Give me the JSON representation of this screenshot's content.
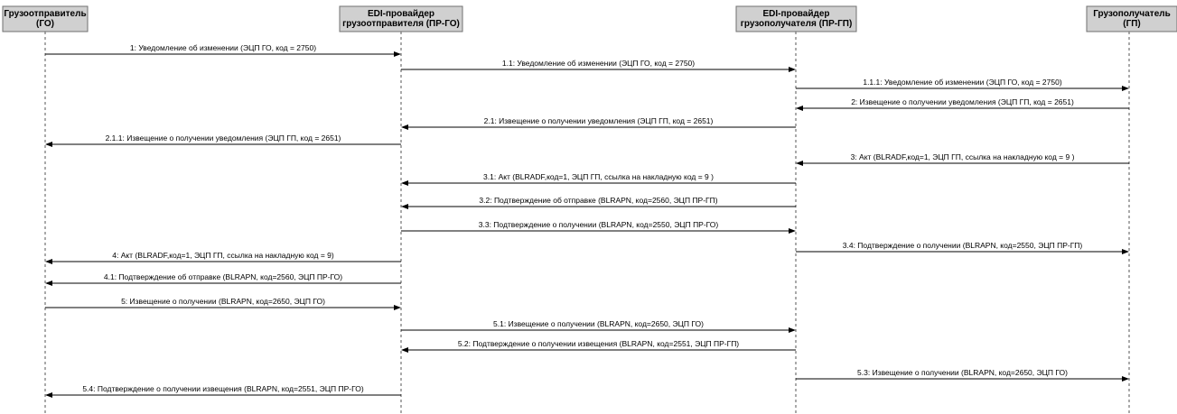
{
  "actors": [
    {
      "id": "go",
      "lines": [
        "Грузоотправитель",
        "(ГО)"
      ]
    },
    {
      "id": "prgo",
      "lines": [
        "EDI-провайдер",
        "грузоотправителя (ПР-ГО)"
      ]
    },
    {
      "id": "prgp",
      "lines": [
        "EDI-провайдер",
        "грузополучателя (ПР-ГП)"
      ]
    },
    {
      "id": "gp",
      "lines": [
        "Грузополучатель",
        "(ГП)"
      ]
    }
  ],
  "messages": [
    {
      "from": "go",
      "to": "prgo",
      "label": "1: Уведомление об изменении (ЭЦП ГО, код = 2750)"
    },
    {
      "from": "prgo",
      "to": "prgp",
      "label": "1.1: Уведомление об изменении (ЭЦП ГО, код = 2750)"
    },
    {
      "from": "prgp",
      "to": "gp",
      "label": "1.1.1: Уведомление об изменении (ЭЦП ГО, код = 2750)"
    },
    {
      "from": "gp",
      "to": "prgp",
      "label": "2: Извещение о получении уведомления (ЭЦП ГП, код = 2651)"
    },
    {
      "from": "prgp",
      "to": "prgo",
      "label": "2.1: Извещение о получении уведомления (ЭЦП ГП, код = 2651)"
    },
    {
      "from": "prgo",
      "to": "go",
      "label": "2.1.1: Извещение о получении уведомления (ЭЦП ГП, код = 2651)"
    },
    {
      "from": "gp",
      "to": "prgp",
      "label": "3: Акт (BLRADF,код=1, ЭЦП ГП, ссылка на накладную код =  9 )"
    },
    {
      "from": "prgp",
      "to": "prgo",
      "label": "3.1: Акт (BLRADF,код=1, ЭЦП ГП, ссылка на накладную код =  9 )"
    },
    {
      "from": "prgp",
      "to": "prgo",
      "label": "3.2: Подтверждение об отправке (BLRAPN, код=2560, ЭЦП ПР-ГП)"
    },
    {
      "from": "prgo",
      "to": "prgp",
      "label": "3.3: Подтверждение о получении (BLRAPN, код=2550, ЭЦП ПР-ГО)"
    },
    {
      "from": "prgp",
      "to": "gp",
      "label": "3.4: Подтверждение о получении (BLRAPN, код=2550, ЭЦП ПР-ГП)"
    },
    {
      "from": "prgo",
      "to": "go",
      "label": "4: Акт (BLRADF,код=1, ЭЦП ГП, ссылка на накладную код =  9)"
    },
    {
      "from": "prgo",
      "to": "go",
      "label": "4.1: Подтверждение об отправке (BLRAPN, код=2560, ЭЦП ПР-ГО)"
    },
    {
      "from": "go",
      "to": "prgo",
      "label": "5: Извещение о получении (BLRAPN, код=2650, ЭЦП ГО)"
    },
    {
      "from": "prgo",
      "to": "prgp",
      "label": "5.1: Извещение о получении (BLRAPN, код=2650, ЭЦП ГО)"
    },
    {
      "from": "prgp",
      "to": "prgo",
      "label": "5.2: Подтверждение о получении извещения (BLRAPN, код=2551, ЭЦП ПР-ГП)"
    },
    {
      "from": "prgp",
      "to": "gp",
      "label": "5.3: Извещение о получении (BLRAPN, код=2650, ЭЦП ГО)"
    },
    {
      "from": "prgo",
      "to": "go",
      "label": "5.4: Подтверждение о получении извещения (BLRAPN, код=2551, ЭЦП ПР-ГО)"
    }
  ]
}
